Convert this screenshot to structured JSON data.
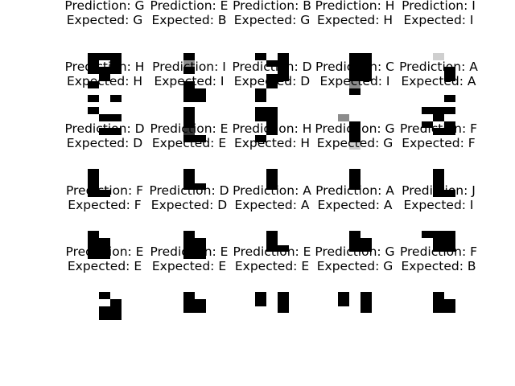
{
  "panels": [
    {
      "prediction": "Prediction: G",
      "expected": "Expected: G"
    },
    {
      "prediction": "Prediction: E",
      "expected": "Expected: B"
    },
    {
      "prediction": "Prediction: B",
      "expected": "Expected: G"
    },
    {
      "prediction": "Prediction: H",
      "expected": "Expected: H"
    },
    {
      "prediction": "Prediction: I",
      "expected": "Expected: I"
    },
    {
      "prediction": "Prediction: H",
      "expected": "Expected: H"
    },
    {
      "prediction": "Prediction: I",
      "expected": "Expected: I"
    },
    {
      "prediction": "Prediction: D",
      "expected": "Expected: D"
    },
    {
      "prediction": "Prediction: C",
      "expected": "Expected: I"
    },
    {
      "prediction": "Prediction: A",
      "expected": "Expected: A"
    },
    {
      "prediction": "Prediction: D",
      "expected": "Expected: D"
    },
    {
      "prediction": "Prediction: E",
      "expected": "Expected: E"
    },
    {
      "prediction": "Prediction: H",
      "expected": "Expected: H"
    },
    {
      "prediction": "Prediction: G",
      "expected": "Expected: G"
    },
    {
      "prediction": "Prediction: F",
      "expected": "Expected: F"
    },
    {
      "prediction": "Prediction: F",
      "expected": "Expected: F"
    },
    {
      "prediction": "Prediction: D",
      "expected": "Expected: D"
    },
    {
      "prediction": "Prediction: A",
      "expected": "Expected: A"
    },
    {
      "prediction": "Prediction: A",
      "expected": "Expected: A"
    },
    {
      "prediction": "Prediction: J",
      "expected": "Expected: I"
    },
    {
      "prediction": "Prediction: E",
      "expected": "Expected: E"
    },
    {
      "prediction": "Prediction: E",
      "expected": "Expected: E"
    },
    {
      "prediction": "Prediction: E",
      "expected": "Expected: E"
    },
    {
      "prediction": "Prediction: G",
      "expected": "Expected: G"
    },
    {
      "prediction": "Prediction: F",
      "expected": "Expected: B"
    }
  ],
  "pixel_grids": [
    [
      "00000",
      "01110",
      "01010",
      "01110",
      "00100",
      "01000",
      "00000",
      "01010"
    ],
    [
      "00000",
      "00100",
      "00g00",
      "00100",
      "00000",
      "00100",
      "00110",
      "00110"
    ],
    [
      "00000",
      "01010",
      "00110",
      "00010",
      "00110",
      "00100",
      "01000",
      "01000"
    ],
    [
      "00000",
      "00110",
      "00110",
      "00110",
      "00110",
      "00g00",
      "00100",
      "00000"
    ],
    [
      "00000",
      "00l00",
      "00000",
      "00010",
      "00010",
      "00000",
      "00000",
      "00010"
    ],
    [
      "01000",
      "00110",
      "00000",
      "00110",
      "00000",
      "00000",
      "00000",
      "00000"
    ],
    [
      "00100",
      "00100",
      "00100",
      "00d00",
      "00110",
      "00000",
      "00000",
      "00000"
    ],
    [
      "01100",
      "01100",
      "00100",
      "00100",
      "01000",
      "00000",
      "00000",
      "00000"
    ],
    [
      "00000",
      "0g000",
      "00100",
      "00100",
      "00100",
      "00l00",
      "00000",
      "00000"
    ],
    [
      "01110",
      "00100",
      "01010",
      "00110",
      "00000",
      "00000",
      "00000",
      "00000"
    ],
    [
      "01000",
      "01000",
      "01000",
      "01100",
      "00000",
      "00000",
      "00000",
      "00000"
    ],
    [
      "00100",
      "00100",
      "00110",
      "00000",
      "00000",
      "00000",
      "00000",
      "00000"
    ],
    [
      "00100",
      "00100",
      "00100",
      "00000",
      "00000",
      "00000",
      "00000",
      "00000"
    ],
    [
      "00100",
      "00100",
      "00100",
      "00000",
      "00000",
      "00000",
      "00000",
      "00000"
    ],
    [
      "00100",
      "00100",
      "00100",
      "00110",
      "00000",
      "00000",
      "00000",
      "00000"
    ],
    [
      "01000",
      "01100",
      "01100",
      "01100",
      "00000",
      "00000",
      "00000",
      "00000"
    ],
    [
      "00100",
      "00110",
      "00110",
      "00110",
      "00000",
      "00000",
      "00000",
      "00000"
    ],
    [
      "00100",
      "00100",
      "00110",
      "00000",
      "00000",
      "00000",
      "00000",
      "00000"
    ],
    [
      "00100",
      "00110",
      "00110",
      "00000",
      "00000",
      "00000",
      "00000",
      "00000"
    ],
    [
      "01110",
      "00110",
      "00110",
      "00000",
      "00000",
      "00000",
      "00000",
      "00000"
    ],
    [
      "00100",
      "00010",
      "00110",
      "00110",
      "00000",
      "00000",
      "00000",
      "00000"
    ],
    [
      "00100",
      "00110",
      "00110",
      "00000",
      "00000",
      "00000",
      "00000",
      "00000"
    ],
    [
      "01010",
      "01010",
      "00010",
      "00000",
      "00000",
      "00000",
      "00000",
      "00000"
    ],
    [
      "01010",
      "01010",
      "00010",
      "00000",
      "00000",
      "00000",
      "00000",
      "00000"
    ],
    [
      "00100",
      "00110",
      "00110",
      "00000",
      "00000",
      "00000",
      "00000",
      "00000"
    ]
  ]
}
